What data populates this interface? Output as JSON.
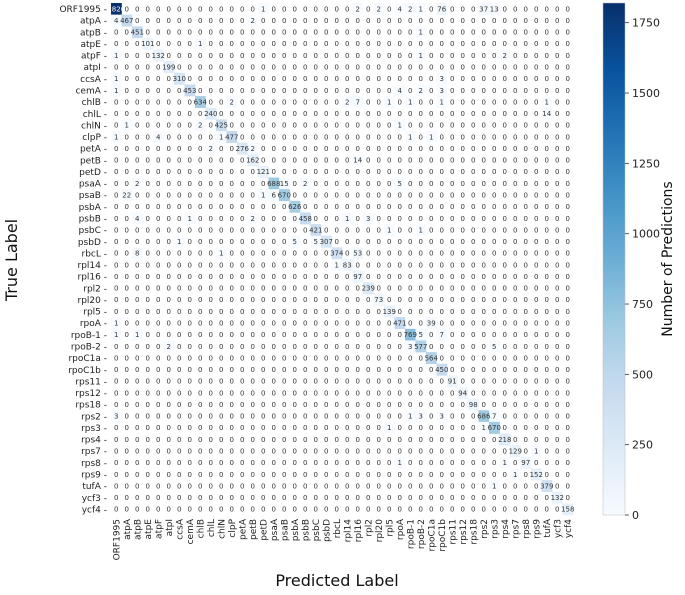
{
  "chart_data": {
    "type": "heatmap",
    "xlabel": "Predicted Label",
    "ylabel": "True Label",
    "colorbar_label": "Number of Predictions",
    "colorbar_range": [
      0,
      1820
    ],
    "colorbar_ticks": [
      0,
      250,
      500,
      750,
      1000,
      1250,
      1500,
      1750
    ],
    "labels": [
      "ORF1995",
      "atpA",
      "atpB",
      "atpE",
      "atpF",
      "atpI",
      "ccsA",
      "cemA",
      "chlB",
      "chlL",
      "chlN",
      "clpP",
      "petA",
      "petB",
      "petD",
      "psaA",
      "psaB",
      "psbA",
      "psbB",
      "psbC",
      "psbD",
      "rbcL",
      "rpl14",
      "rpl16",
      "rpl2",
      "rpl20",
      "rpl5",
      "rpoA",
      "rpoB-1",
      "rpoB-2",
      "rpoC1a",
      "rpoC1b",
      "rps11",
      "rps12",
      "rps18",
      "rps2",
      "rps3",
      "rps4",
      "rps7",
      "rps8",
      "rps9",
      "tufA",
      "ycf3",
      "ycf4"
    ],
    "diagonal": [
      1820,
      467,
      451,
      101,
      132,
      199,
      310,
      453,
      634,
      240,
      425,
      477,
      276,
      162,
      121,
      688,
      670,
      626,
      458,
      421,
      307,
      374,
      83,
      97,
      239,
      73,
      139,
      471,
      769,
      577,
      564,
      450,
      91,
      94,
      98,
      686,
      670,
      218,
      129,
      97,
      152,
      379,
      132,
      158
    ],
    "off_diagonal": [
      {
        "r": 0,
        "c": 14,
        "v": 1
      },
      {
        "r": 0,
        "c": 23,
        "v": 2
      },
      {
        "r": 0,
        "c": 25,
        "v": 2
      },
      {
        "r": 0,
        "c": 27,
        "v": 4
      },
      {
        "r": 0,
        "c": 28,
        "v": 2
      },
      {
        "r": 0,
        "c": 29,
        "v": 1
      },
      {
        "r": 0,
        "c": 31,
        "v": 76
      },
      {
        "r": 0,
        "c": 35,
        "v": 37
      },
      {
        "r": 0,
        "c": 36,
        "v": 13
      },
      {
        "r": 1,
        "c": 0,
        "v": 4
      },
      {
        "r": 1,
        "c": 13,
        "v": 2
      },
      {
        "r": 2,
        "c": 29,
        "v": 1
      },
      {
        "r": 3,
        "c": 8,
        "v": 1
      },
      {
        "r": 4,
        "c": 0,
        "v": 1
      },
      {
        "r": 4,
        "c": 29,
        "v": 1
      },
      {
        "r": 4,
        "c": 37,
        "v": 2
      },
      {
        "r": 6,
        "c": 0,
        "v": 1
      },
      {
        "r": 6,
        "c": 31,
        "v": 3
      },
      {
        "r": 7,
        "c": 0,
        "v": 1
      },
      {
        "r": 7,
        "c": 27,
        "v": 4
      },
      {
        "r": 7,
        "c": 29,
        "v": 2
      },
      {
        "r": 7,
        "c": 31,
        "v": 3
      },
      {
        "r": 8,
        "c": 11,
        "v": 2
      },
      {
        "r": 8,
        "c": 22,
        "v": 2
      },
      {
        "r": 8,
        "c": 23,
        "v": 7
      },
      {
        "r": 8,
        "c": 26,
        "v": 1
      },
      {
        "r": 8,
        "c": 28,
        "v": 1
      },
      {
        "r": 8,
        "c": 31,
        "v": 1
      },
      {
        "r": 8,
        "c": 41,
        "v": 1
      },
      {
        "r": 9,
        "c": 41,
        "v": 14
      },
      {
        "r": 10,
        "c": 1,
        "v": 1
      },
      {
        "r": 10,
        "c": 8,
        "v": 2
      },
      {
        "r": 10,
        "c": 27,
        "v": 1
      },
      {
        "r": 11,
        "c": 0,
        "v": 1
      },
      {
        "r": 11,
        "c": 4,
        "v": 4
      },
      {
        "r": 11,
        "c": 10,
        "v": 1
      },
      {
        "r": 11,
        "c": 28,
        "v": 1
      },
      {
        "r": 11,
        "c": 30,
        "v": 1
      },
      {
        "r": 12,
        "c": 9,
        "v": 2
      },
      {
        "r": 12,
        "c": 13,
        "v": 2
      },
      {
        "r": 13,
        "c": 23,
        "v": 14
      },
      {
        "r": 15,
        "c": 2,
        "v": 2
      },
      {
        "r": 15,
        "c": 16,
        "v": 15
      },
      {
        "r": 15,
        "c": 18,
        "v": 2
      },
      {
        "r": 15,
        "c": 27,
        "v": 5
      },
      {
        "r": 16,
        "c": 1,
        "v": 22
      },
      {
        "r": 16,
        "c": 14,
        "v": 1
      },
      {
        "r": 16,
        "c": 15,
        "v": 6
      },
      {
        "r": 18,
        "c": 2,
        "v": 4
      },
      {
        "r": 18,
        "c": 7,
        "v": 1
      },
      {
        "r": 18,
        "c": 13,
        "v": 2
      },
      {
        "r": 18,
        "c": 22,
        "v": 1
      },
      {
        "r": 18,
        "c": 24,
        "v": 3
      },
      {
        "r": 19,
        "c": 26,
        "v": 1
      },
      {
        "r": 19,
        "c": 29,
        "v": 1
      },
      {
        "r": 20,
        "c": 6,
        "v": 1
      },
      {
        "r": 20,
        "c": 17,
        "v": 5
      },
      {
        "r": 20,
        "c": 19,
        "v": 5
      },
      {
        "r": 21,
        "c": 2,
        "v": 8
      },
      {
        "r": 21,
        "c": 10,
        "v": 1
      },
      {
        "r": 21,
        "c": 23,
        "v": 53
      },
      {
        "r": 22,
        "c": 21,
        "v": 1
      },
      {
        "r": 27,
        "c": 0,
        "v": 1
      },
      {
        "r": 27,
        "c": 30,
        "v": 39
      },
      {
        "r": 28,
        "c": 0,
        "v": 1
      },
      {
        "r": 28,
        "c": 2,
        "v": 1
      },
      {
        "r": 28,
        "c": 29,
        "v": 5
      },
      {
        "r": 28,
        "c": 31,
        "v": 7
      },
      {
        "r": 29,
        "c": 5,
        "v": 2
      },
      {
        "r": 29,
        "c": 28,
        "v": 3
      },
      {
        "r": 29,
        "c": 36,
        "v": 5
      },
      {
        "r": 35,
        "c": 0,
        "v": 3
      },
      {
        "r": 35,
        "c": 28,
        "v": 1
      },
      {
        "r": 35,
        "c": 29,
        "v": 3
      },
      {
        "r": 35,
        "c": 31,
        "v": 3
      },
      {
        "r": 35,
        "c": 36,
        "v": 7
      },
      {
        "r": 36,
        "c": 26,
        "v": 1
      },
      {
        "r": 36,
        "c": 35,
        "v": 1
      },
      {
        "r": 38,
        "c": 40,
        "v": 1
      },
      {
        "r": 39,
        "c": 27,
        "v": 1
      },
      {
        "r": 39,
        "c": 37,
        "v": 1
      },
      {
        "r": 40,
        "c": 38,
        "v": 1
      },
      {
        "r": 41,
        "c": 36,
        "v": 1
      }
    ]
  }
}
